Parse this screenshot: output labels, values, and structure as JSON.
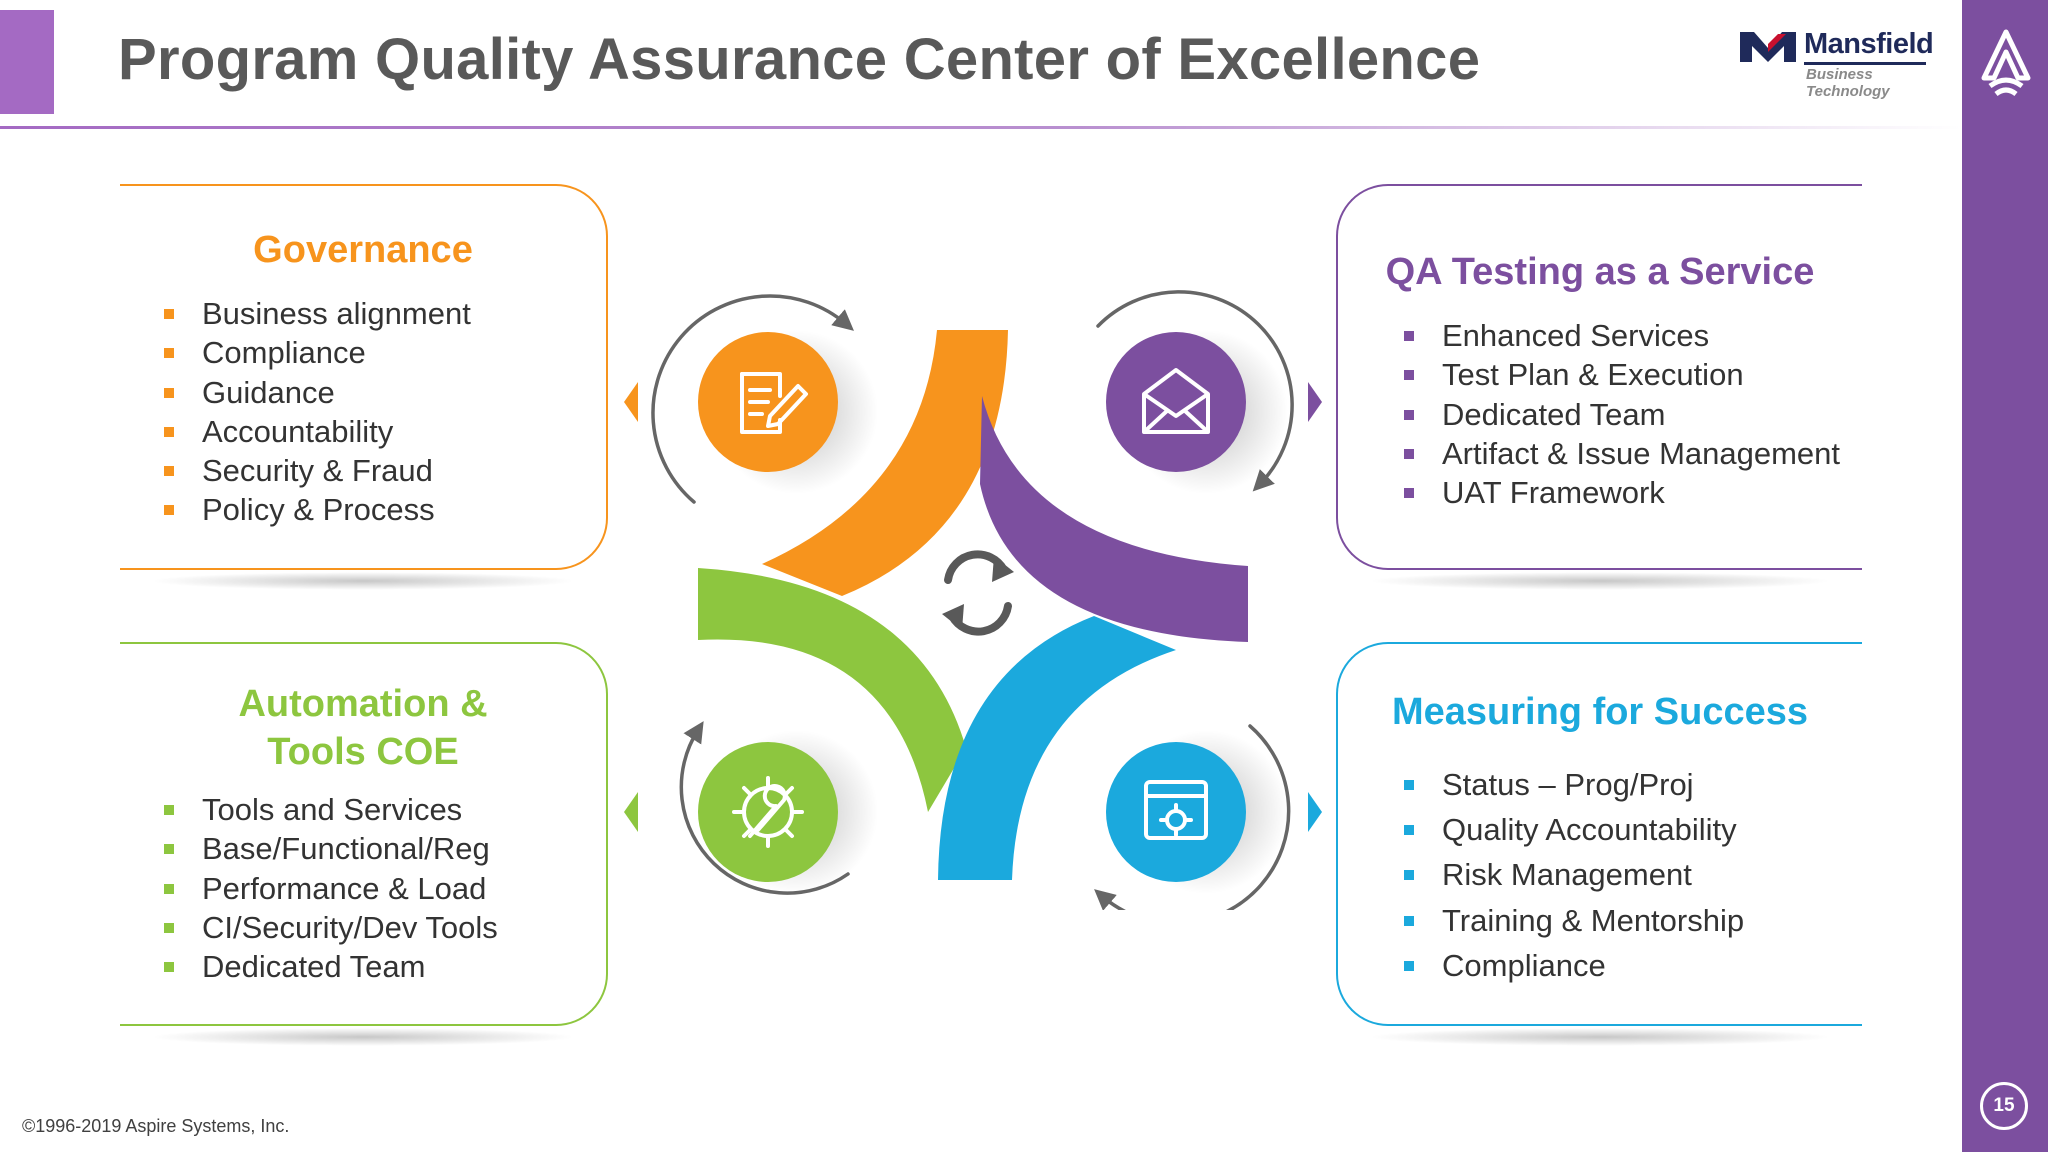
{
  "header": {
    "title": "Program Quality Assurance Center of Excellence"
  },
  "logo": {
    "name": "Mansfield",
    "sub_line1": "Business",
    "sub_line2": "Technology",
    "icon": "mansfield-logo-icon"
  },
  "sidebar": {
    "page_number": "15",
    "icon": "aspire-logo-icon"
  },
  "footer": {
    "copyright": "©1996-2019 Aspire Systems, Inc."
  },
  "colors": {
    "orange": "#f7941d",
    "purple": "#7c4f9f",
    "green": "#8dc63f",
    "blue": "#1ba9dd",
    "title_gray": "#595959"
  },
  "quadrants": {
    "governance": {
      "title": "Governance",
      "icon": "document-edit-icon",
      "items": [
        "Business alignment",
        "Compliance",
        "Guidance",
        "Accountability",
        "Security & Fraud",
        "Policy & Process"
      ]
    },
    "qa_testing": {
      "title": "QA Testing as a Service",
      "icon": "envelope-open-icon",
      "items": [
        "Enhanced Services",
        "Test Plan & Execution",
        "Dedicated Team",
        "Artifact & Issue Management",
        "UAT Framework"
      ]
    },
    "automation": {
      "title_line1": "Automation &",
      "title_line2": "Tools COE",
      "icon": "gear-wrench-icon",
      "items": [
        "Tools and Services",
        "Base/Functional/Reg",
        "Performance & Load",
        "CI/Security/Dev Tools",
        "Dedicated Team"
      ]
    },
    "measuring": {
      "title": "Measuring for Success",
      "icon": "browser-gear-icon",
      "items": [
        "Status – Prog/Proj",
        "Quality Accountability",
        "Risk Management",
        "Training & Mentorship",
        "Compliance"
      ]
    }
  },
  "center": {
    "icon": "refresh-cycle-icon"
  }
}
